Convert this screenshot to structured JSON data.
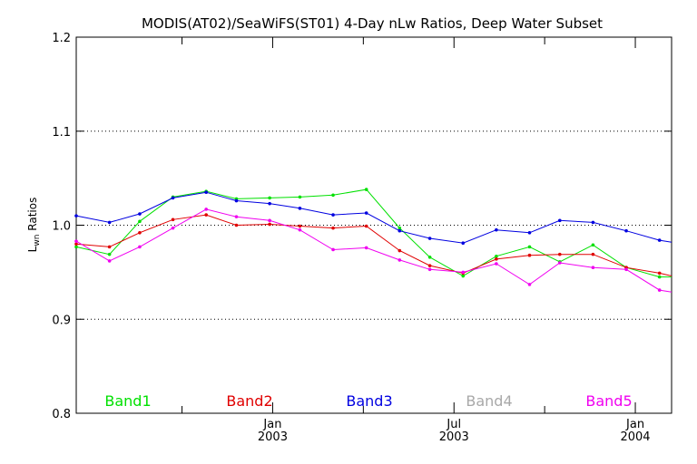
{
  "chart_data": {
    "type": "line",
    "title": "MODIS(AT02)/SeaWiFS(ST01) 4-Day nLw Ratios, Deep Water Subset",
    "ylabel": "L",
    "ylabel_sub": "wn",
    "ylabel_suffix": " Ratios",
    "xlabel": "",
    "ylim": [
      0.8,
      1.2
    ],
    "yticks": [
      "0.8",
      "0.9",
      "1.0",
      "1.1",
      "1.2"
    ],
    "y_gridlines": [
      0.9,
      1.0,
      1.1
    ],
    "xlim_months": [
      -6.5,
      13.2
    ],
    "xticks": [
      {
        "month": 0,
        "line1": "Jan",
        "line2": "2003"
      },
      {
        "month": 6,
        "line1": "Jul",
        "line2": "2003"
      },
      {
        "month": 12,
        "line1": "Jan",
        "line2": "2004"
      }
    ],
    "minor_xticks_months": [
      -3,
      3,
      9
    ],
    "x_months": [
      -6.5,
      -5.4,
      -4.4,
      -3.3,
      -2.2,
      -1.2,
      -0.1,
      0.9,
      2.0,
      3.1,
      4.2,
      5.2,
      6.3,
      7.4,
      8.5,
      9.5,
      10.6,
      11.7,
      12.8,
      13.2
    ],
    "series": [
      {
        "name": "Band1",
        "color": "#00e000",
        "values": [
          0.977,
          0.969,
          1.004,
          1.03,
          1.036,
          1.028,
          1.029,
          1.03,
          1.032,
          1.038,
          0.997,
          0.966,
          0.946,
          0.967,
          0.977,
          0.961,
          0.979,
          0.955,
          0.945,
          0.945
        ]
      },
      {
        "name": "Band2",
        "color": "#e00000",
        "values": [
          0.98,
          0.977,
          0.992,
          1.006,
          1.011,
          1.0,
          1.001,
          0.999,
          0.997,
          0.999,
          0.973,
          0.957,
          0.949,
          0.964,
          0.968,
          0.969,
          0.969,
          0.955,
          0.949,
          0.946
        ]
      },
      {
        "name": "Band3",
        "color": "#0000e0",
        "values": [
          1.01,
          1.003,
          1.012,
          1.029,
          1.035,
          1.026,
          1.023,
          1.018,
          1.011,
          1.013,
          0.994,
          0.986,
          0.981,
          0.995,
          0.992,
          1.005,
          1.003,
          0.994,
          0.984,
          0.982
        ]
      },
      {
        "name": "Band4",
        "color": "#a8a8a8",
        "values": []
      },
      {
        "name": "Band5",
        "color": "#f000f0",
        "values": [
          0.983,
          0.962,
          0.977,
          0.997,
          1.017,
          1.009,
          1.005,
          0.995,
          0.974,
          0.976,
          0.963,
          0.953,
          0.95,
          0.959,
          0.937,
          0.96,
          0.955,
          0.953,
          0.931,
          0.929
        ]
      }
    ]
  }
}
